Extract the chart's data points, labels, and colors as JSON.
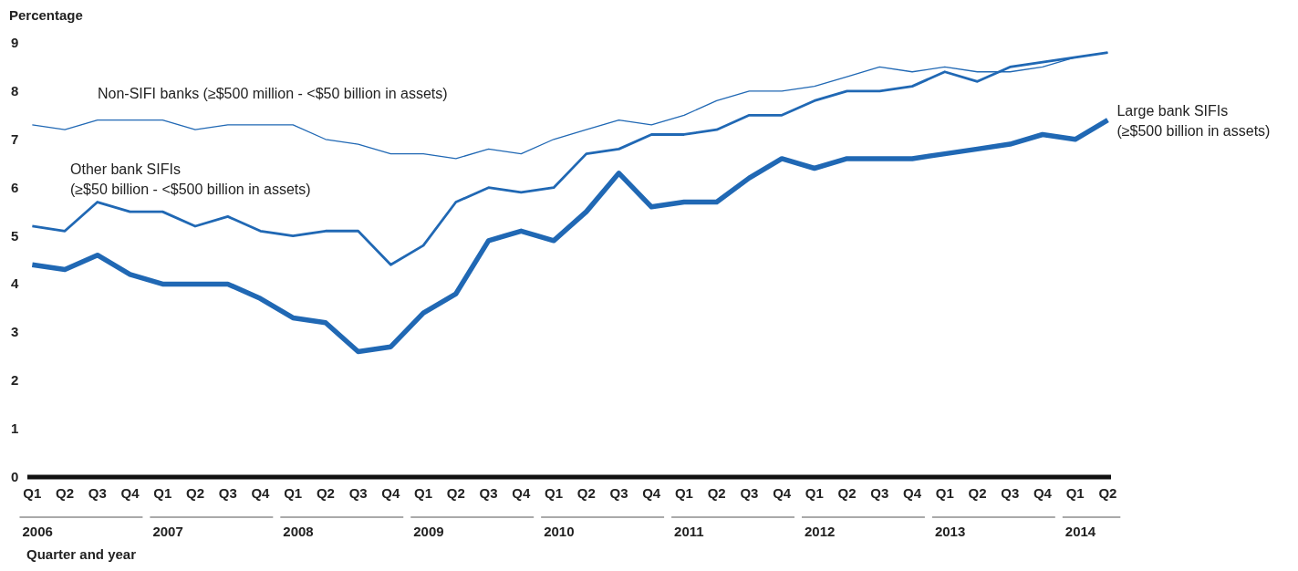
{
  "chart_data": {
    "type": "line",
    "ylabel": "Percentage",
    "xlabel": "Quarter and year",
    "categories": [
      "Q1",
      "Q2",
      "Q3",
      "Q4",
      "Q1",
      "Q2",
      "Q3",
      "Q4",
      "Q1",
      "Q2",
      "Q3",
      "Q4",
      "Q1",
      "Q2",
      "Q3",
      "Q4",
      "Q1",
      "Q2",
      "Q3",
      "Q4",
      "Q1",
      "Q2",
      "Q3",
      "Q4",
      "Q1",
      "Q2",
      "Q3",
      "Q4",
      "Q1",
      "Q2",
      "Q3",
      "Q4",
      "Q1",
      "Q2"
    ],
    "series": [
      {
        "name": "Non-SIFI banks (≥$500 million - <$50 billion in assets)",
        "color": "#2068b4",
        "values": [
          7.3,
          7.2,
          7.4,
          7.4,
          7.4,
          7.2,
          7.3,
          7.3,
          7.3,
          7.0,
          6.9,
          6.7,
          6.7,
          6.6,
          6.8,
          6.7,
          7.0,
          7.2,
          7.4,
          7.3,
          7.5,
          7.8,
          8.0,
          8.0,
          8.1,
          8.3,
          8.5,
          8.4,
          8.5,
          8.4,
          8.4,
          8.5,
          8.7,
          8.8
        ]
      },
      {
        "name": "Other bank SIFIs (≥$50 billion - <$500 billion in assets)",
        "color": "#2068b4",
        "values": [
          5.2,
          5.1,
          5.7,
          5.5,
          5.5,
          5.2,
          5.4,
          5.1,
          5.0,
          5.1,
          5.1,
          4.4,
          4.8,
          5.7,
          6.0,
          5.9,
          6.0,
          6.7,
          6.8,
          7.1,
          7.1,
          7.2,
          7.5,
          7.5,
          7.8,
          8.0,
          8.0,
          8.1,
          8.4,
          8.2,
          8.5,
          8.6,
          8.7,
          8.8
        ]
      },
      {
        "name": "Large bank SIFIs (≥$500 billion in assets)",
        "color": "#2068b4",
        "values": [
          4.4,
          4.3,
          4.6,
          4.2,
          4.0,
          4.0,
          4.0,
          3.7,
          3.3,
          3.2,
          2.6,
          2.7,
          3.4,
          3.8,
          4.9,
          5.1,
          4.9,
          5.5,
          6.3,
          5.6,
          5.7,
          5.7,
          6.2,
          6.6,
          6.4,
          6.6,
          6.6,
          6.6,
          6.7,
          6.8,
          6.9,
          7.1,
          7.0,
          7.4
        ]
      }
    ],
    "ylim": [
      0,
      9
    ],
    "yticks": [
      0,
      1,
      2,
      3,
      4,
      5,
      6,
      7,
      8,
      9
    ],
    "grid": false,
    "legend": false,
    "marker": "none",
    "line_style": "solid",
    "annotations": [
      "2006",
      "2007",
      "2008",
      "2009",
      "2010",
      "2011",
      "2012",
      "2013",
      "2014"
    ]
  }
}
